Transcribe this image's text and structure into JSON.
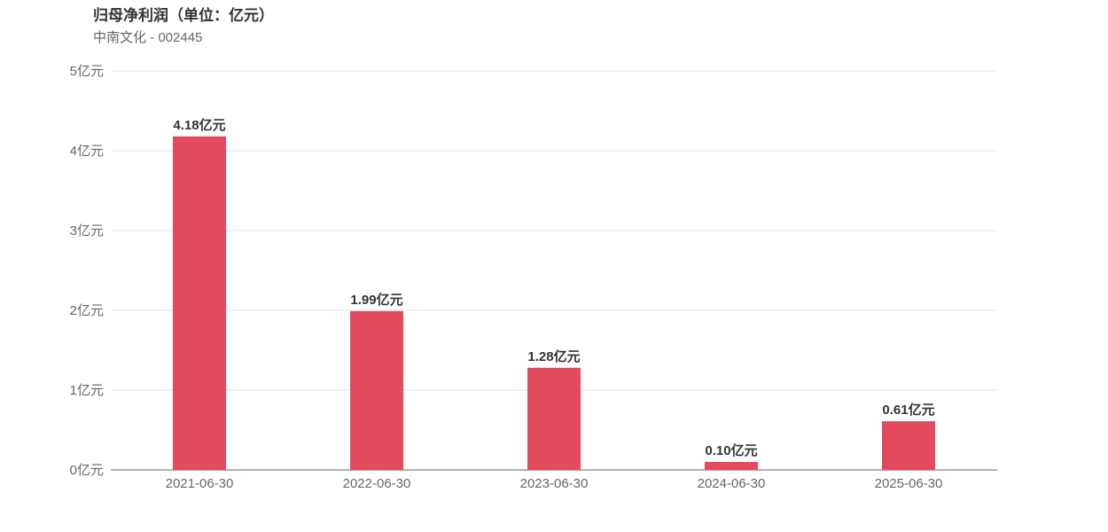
{
  "chart_data": {
    "type": "bar",
    "title": "归母净利润（单位：亿元）",
    "subtitle": "中南文化 - 002445",
    "categories": [
      "2021-06-30",
      "2022-06-30",
      "2023-06-30",
      "2024-06-30",
      "2025-06-30"
    ],
    "values": [
      4.18,
      1.99,
      1.28,
      0.1,
      0.61
    ],
    "data_labels": [
      "4.18亿元",
      "1.99亿元",
      "1.28亿元",
      "0.10亿元",
      "0.61亿元"
    ],
    "ylim": [
      0,
      5
    ],
    "yticks": [
      "0亿元",
      "1亿元",
      "2亿元",
      "3亿元",
      "4亿元",
      "5亿元"
    ],
    "grid": true,
    "bar_color": "#e44a5d"
  }
}
